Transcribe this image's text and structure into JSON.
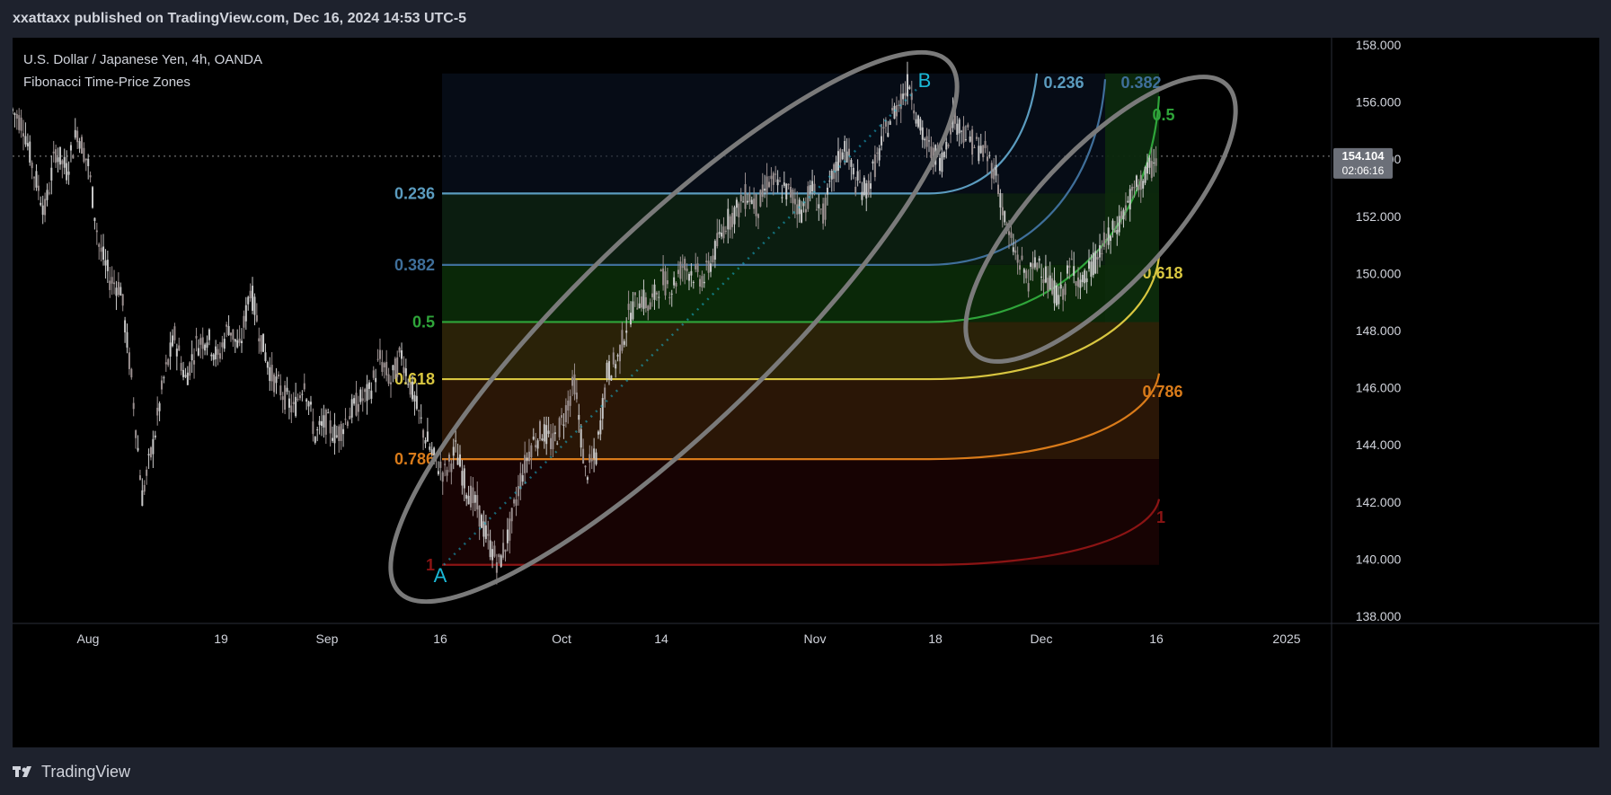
{
  "header": {
    "publisher": "xxattaxx published on TradingView.com, Dec 16, 2024 14:53 UTC-5"
  },
  "legend": {
    "symbol": "U.S. Dollar / Japanese Yen, 4h, OANDA",
    "indicator": "Fibonacci Time-Price Zones"
  },
  "footer": {
    "logo_icon": "tradingview-logo-icon",
    "brand": "TradingView"
  },
  "colors": {
    "background": "#000000",
    "panel": "#1e222d",
    "level_0236": "#5b9cbf",
    "level_0382": "#3f6f9a",
    "level_05": "#2fa53a",
    "level_0618": "#d8c640",
    "level_0786": "#d97b1a",
    "level_1": "#8b1414",
    "anchor": "#1ab8d6",
    "ellipse": "#7a7a7a"
  },
  "chart_data": {
    "type": "candlestick",
    "price_axis": {
      "ticks": [
        "158.000",
        "156.000",
        "154.000",
        "152.000",
        "150.000",
        "148.000",
        "146.000",
        "144.000",
        "142.000",
        "140.000",
        "138.000"
      ],
      "ylim": [
        138.0,
        158.0
      ]
    },
    "time_axis": {
      "ticks": [
        "Aug",
        "19",
        "Sep",
        "16",
        "Oct",
        "14",
        "Nov",
        "18",
        "Dec",
        "16",
        "2025"
      ]
    },
    "current_price": {
      "price": "154.104",
      "countdown": "02:06:16",
      "value": 154.104
    },
    "anchors": [
      {
        "label": "A",
        "price": 139.8,
        "date": "Sep 16"
      },
      {
        "label": "B",
        "price": 156.7,
        "date": "Nov 15"
      }
    ],
    "fib_levels_left": [
      "0.236",
      "0.382",
      "0.5",
      "0.618",
      "0.786",
      "1"
    ],
    "fib_levels_right": [
      "0.236",
      "0.382",
      "0.5",
      "0.618",
      "0.786",
      "1"
    ],
    "fib_prices": [
      152.8,
      150.3,
      148.3,
      146.3,
      143.5,
      139.8
    ],
    "price_path": [
      155.7,
      155.2,
      153.5,
      152.2,
      154.3,
      153.6,
      155.0,
      153.8,
      151.0,
      149.8,
      149.5,
      146.3,
      142.2,
      144.0,
      146.3,
      147.8,
      146.3,
      147.5,
      147.8,
      147.0,
      148.2,
      147.3,
      149.5,
      147.7,
      146.4,
      145.8,
      145.2,
      146.3,
      144.3,
      144.8,
      144.3,
      145.0,
      145.5,
      145.8,
      147.0,
      146.2,
      147.2,
      145.8,
      144.5,
      143.5,
      143.0,
      143.8,
      142.5,
      141.8,
      140.6,
      139.8,
      141.0,
      142.8,
      144.0,
      144.5,
      144.0,
      145.0,
      146.2,
      143.0,
      143.6,
      146.5,
      147.0,
      148.5,
      149.2,
      148.8,
      149.8,
      149.5,
      150.3,
      150.0,
      149.8,
      150.8,
      151.8,
      152.2,
      152.8,
      152.3,
      153.3,
      153.0,
      152.8,
      152.2,
      153.0,
      152.0,
      153.5,
      154.5,
      153.2,
      152.9,
      154.0,
      155.2,
      156.0,
      156.7,
      155.0,
      154.2,
      154.0,
      155.5,
      155.0,
      154.5,
      154.2,
      153.5,
      151.5,
      150.5,
      149.8,
      150.5,
      149.5,
      149.2,
      150.3,
      149.6,
      150.3,
      151.0,
      151.5,
      152.3,
      153.0,
      153.5,
      154.1
    ],
    "ellipses": 2
  }
}
